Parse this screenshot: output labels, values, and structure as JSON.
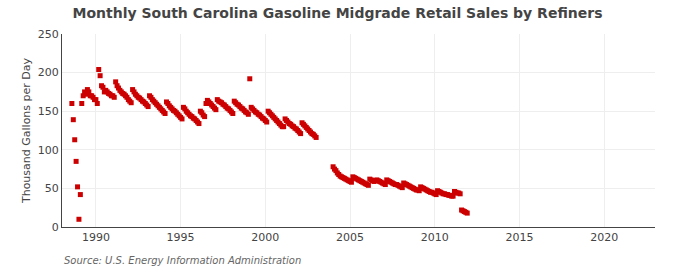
{
  "chart_data": {
    "type": "scatter",
    "title": "Monthly South Carolina Gasoline Midgrade Retail Sales by Refiners",
    "y_label": "Thousand Gallons per Day",
    "annotations": [
      "Source: U.S. Energy Information Administration"
    ],
    "color": "#cc0000",
    "marker": "square",
    "grid": true,
    "xlim": [
      1988.0,
      2023.0
    ],
    "xticks": [
      1990,
      1995,
      2000,
      2005,
      2010,
      2015,
      2020
    ],
    "ylim": [
      0,
      250
    ],
    "yticks": [
      0,
      50,
      100,
      150,
      200,
      250
    ],
    "x": [
      1988.583,
      1988.667,
      1988.75,
      1988.833,
      1988.917,
      1989.0,
      1989.083,
      1989.167,
      1989.25,
      1989.333,
      1989.417,
      1989.5,
      1989.583,
      1989.667,
      1989.75,
      1989.833,
      1989.917,
      1990.0,
      1990.083,
      1990.167,
      1990.25,
      1990.333,
      1990.417,
      1990.5,
      1990.583,
      1990.667,
      1990.75,
      1990.833,
      1990.917,
      1991.0,
      1991.083,
      1991.167,
      1991.25,
      1991.333,
      1991.417,
      1991.5,
      1991.583,
      1991.667,
      1991.75,
      1991.833,
      1991.917,
      1992.0,
      1992.083,
      1992.167,
      1992.25,
      1992.333,
      1992.417,
      1992.5,
      1992.583,
      1992.667,
      1992.75,
      1992.833,
      1992.917,
      1993.0,
      1993.083,
      1993.167,
      1993.25,
      1993.333,
      1993.417,
      1993.5,
      1993.583,
      1993.667,
      1993.75,
      1993.833,
      1993.917,
      1994.0,
      1994.083,
      1994.167,
      1994.25,
      1994.333,
      1994.417,
      1994.5,
      1994.583,
      1994.667,
      1994.75,
      1994.833,
      1994.917,
      1995.0,
      1995.083,
      1995.167,
      1995.25,
      1995.333,
      1995.417,
      1995.5,
      1995.583,
      1995.667,
      1995.75,
      1995.833,
      1995.917,
      1996.0,
      1996.083,
      1996.167,
      1996.25,
      1996.333,
      1996.417,
      1996.5,
      1996.583,
      1996.667,
      1996.75,
      1996.833,
      1996.917,
      1997.0,
      1997.083,
      1997.167,
      1997.25,
      1997.333,
      1997.417,
      1997.5,
      1997.583,
      1997.667,
      1997.75,
      1997.833,
      1997.917,
      1998.0,
      1998.083,
      1998.167,
      1998.25,
      1998.333,
      1998.417,
      1998.5,
      1998.583,
      1998.667,
      1998.75,
      1998.833,
      1998.917,
      1999.0,
      1999.083,
      1999.167,
      1999.25,
      1999.333,
      1999.417,
      1999.5,
      1999.583,
      1999.667,
      1999.75,
      1999.833,
      1999.917,
      2000.0,
      2000.083,
      2000.167,
      2000.25,
      2000.333,
      2000.417,
      2000.5,
      2000.583,
      2000.667,
      2000.75,
      2000.833,
      2000.917,
      2001.0,
      2001.083,
      2001.167,
      2001.25,
      2001.333,
      2001.417,
      2001.5,
      2001.583,
      2001.667,
      2001.75,
      2001.833,
      2001.917,
      2002.0,
      2002.083,
      2002.167,
      2002.25,
      2002.333,
      2002.417,
      2002.5,
      2002.583,
      2002.667,
      2002.75,
      2002.833,
      2002.917,
      2003.0,
      2004.0,
      2004.083,
      2004.167,
      2004.25,
      2004.333,
      2004.417,
      2004.5,
      2004.583,
      2004.667,
      2004.75,
      2004.833,
      2004.917,
      2005.0,
      2005.083,
      2005.167,
      2005.25,
      2005.333,
      2005.417,
      2005.5,
      2005.583,
      2005.667,
      2005.75,
      2005.833,
      2005.917,
      2006.0,
      2006.083,
      2006.167,
      2006.25,
      2006.333,
      2006.417,
      2006.5,
      2006.583,
      2006.667,
      2006.75,
      2006.833,
      2006.917,
      2007.0,
      2007.083,
      2007.167,
      2007.25,
      2007.333,
      2007.417,
      2007.5,
      2007.583,
      2007.667,
      2007.75,
      2007.833,
      2007.917,
      2008.0,
      2008.083,
      2008.167,
      2008.25,
      2008.333,
      2008.417,
      2008.5,
      2008.583,
      2008.667,
      2008.75,
      2008.833,
      2008.917,
      2009.0,
      2009.083,
      2009.167,
      2009.25,
      2009.333,
      2009.417,
      2009.5,
      2009.583,
      2009.667,
      2009.75,
      2009.833,
      2009.917,
      2010.0,
      2010.083,
      2010.167,
      2010.25,
      2010.333,
      2010.417,
      2010.5,
      2010.583,
      2010.667,
      2010.75,
      2010.833,
      2010.917,
      2011.0,
      2011.083,
      2011.167,
      2011.25,
      2011.333,
      2011.417,
      2011.5,
      2011.583,
      2011.667,
      2011.75,
      2011.833,
      2011.917
    ],
    "values": [
      160.0,
      139.0,
      113.0,
      85.0,
      52.0,
      10.0,
      42.0,
      160.0,
      170.0,
      175.0,
      172.0,
      178.0,
      175.0,
      170.0,
      170.0,
      168.0,
      165.0,
      165.0,
      160.0,
      204.0,
      196.0,
      183.0,
      181.0,
      175.0,
      177.0,
      175.0,
      173.0,
      172.0,
      170.0,
      170.0,
      168.0,
      188.0,
      183.0,
      180.0,
      177.0,
      175.0,
      173.0,
      172.0,
      170.0,
      168.0,
      165.0,
      163.0,
      161.0,
      178.0,
      175.0,
      172.0,
      170.0,
      168.0,
      167.0,
      165.0,
      163.0,
      162.0,
      160.0,
      158.0,
      156.0,
      170.0,
      168.0,
      165.0,
      163.0,
      161.0,
      159.0,
      157.0,
      155.0,
      153.0,
      151.0,
      149.0,
      147.0,
      162.0,
      160.0,
      157.0,
      155.0,
      153.0,
      151.0,
      150.0,
      148.0,
      146.0,
      144.0,
      142.0,
      140.0,
      155.0,
      153.0,
      150.0,
      148.0,
      146.0,
      144.0,
      143.0,
      141.0,
      140.0,
      138.0,
      136.0,
      134.0,
      150.0,
      148.0,
      145.0,
      143.0,
      160.0,
      164.0,
      162.0,
      160.0,
      158.0,
      156.0,
      154.0,
      152.0,
      165.0,
      163.0,
      162.0,
      161.0,
      159.0,
      158.0,
      156.0,
      154.0,
      153.0,
      151.0,
      149.0,
      147.0,
      163.0,
      161.0,
      159.0,
      158.0,
      156.0,
      154.0,
      153.0,
      151.0,
      149.0,
      148.0,
      146.0,
      192.0,
      155.0,
      153.0,
      151.0,
      149.0,
      148.0,
      146.0,
      145.0,
      143.0,
      141.0,
      140.0,
      138.0,
      136.0,
      150.0,
      148.0,
      146.0,
      144.0,
      142.0,
      140.0,
      138.0,
      136.0,
      134.0,
      132.0,
      130.0,
      130.0,
      140.0,
      138.0,
      136.0,
      134.0,
      133.0,
      131.0,
      130.0,
      128.0,
      127.0,
      125.0,
      123.0,
      121.0,
      135.0,
      133.0,
      131.0,
      129.0,
      127.0,
      125.0,
      123.0,
      121.0,
      120.0,
      118.0,
      116.0,
      78.0,
      75.0,
      73.0,
      70.0,
      68.0,
      66.0,
      65.0,
      64.0,
      63.0,
      62.0,
      61.0,
      60.0,
      59.0,
      58.0,
      65.0,
      64.0,
      63.0,
      62.0,
      61.0,
      60.0,
      59.0,
      58.0,
      57.0,
      56.0,
      55.0,
      54.0,
      62.0,
      61.0,
      60.0,
      59.0,
      60.0,
      61.0,
      60.0,
      59.0,
      58.0,
      57.0,
      56.0,
      55.0,
      61.0,
      60.0,
      59.0,
      58.0,
      57.0,
      56.0,
      55.0,
      55.0,
      54.0,
      53.0,
      52.0,
      51.0,
      57.0,
      56.0,
      55.0,
      54.0,
      53.0,
      52.0,
      51.0,
      50.0,
      49.0,
      48.0,
      48.0,
      47.0,
      52.0,
      51.0,
      50.0,
      49.0,
      48.0,
      47.0,
      46.0,
      45.0,
      45.0,
      44.0,
      43.0,
      42.0,
      47.0,
      46.0,
      45.0,
      44.0,
      43.0,
      43.0,
      42.0,
      42.0,
      41.0,
      41.0,
      40.0,
      40.0,
      46.0,
      45.0,
      44.0,
      44.0,
      43.0,
      22.0,
      21.0,
      20.0,
      19.0,
      18.0
    ]
  }
}
